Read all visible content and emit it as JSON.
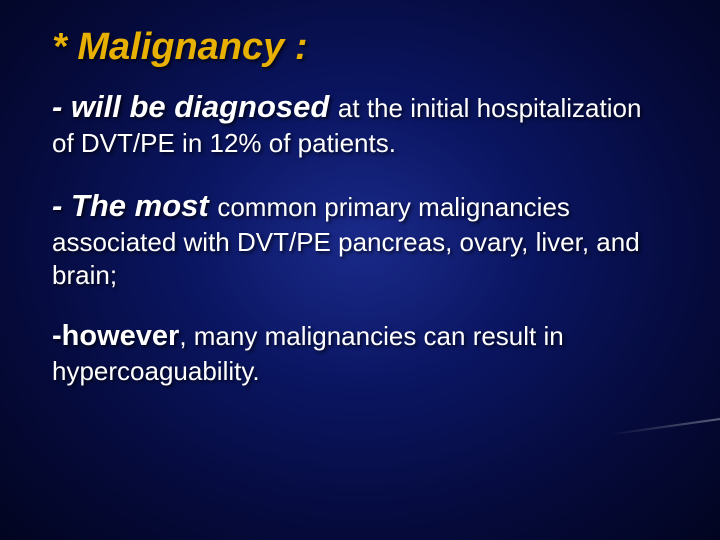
{
  "slide": {
    "background": {
      "center_color": "#1a2a8a",
      "mid_color": "#0a1560",
      "outer_color": "#050a3a",
      "edge_color": "#020520"
    },
    "title": {
      "text": "* Malignancy :",
      "color": "#e8b000",
      "font_size_pt": 28,
      "font_weight": "bold",
      "font_style": "italic"
    },
    "body_text_color": "#ffffff",
    "paragraphs": [
      {
        "lead": " - will be diagnosed ",
        "lead_font_size_pt": 23,
        "lead_bold": true,
        "lead_italic": true,
        "tail": "at the initial hospitalization of DVT/PE in 12% of patients.",
        "tail_font_size_pt": 19
      },
      {
        "lead": " - The most ",
        "lead_font_size_pt": 23,
        "lead_bold": true,
        "lead_italic": true,
        "tail": "common primary malignancies associated with DVT/PE pancreas, ovary, liver, and brain;",
        "tail_font_size_pt": 19
      },
      {
        "lead": " -however",
        "lead_font_size_pt": 21,
        "lead_bold": true,
        "lead_italic": false,
        "tail": ", many malignancies can result in hypercoaguability.",
        "tail_font_size_pt": 19
      }
    ],
    "decor_line_color": "rgba(255,255,255,0.35)"
  }
}
